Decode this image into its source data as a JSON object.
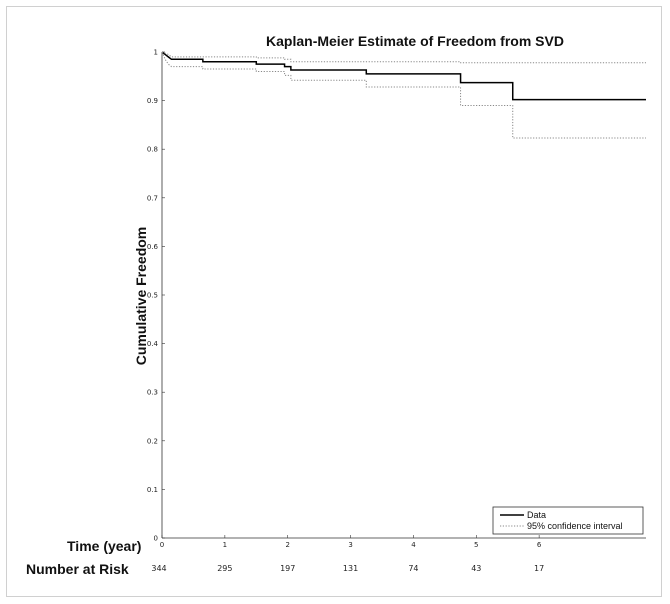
{
  "chart_data": {
    "type": "line",
    "title": "Kaplan-Meier Estimate of Freedom from SVD",
    "xlabel": "Time (year)",
    "ylabel": "Cumulative Freedom",
    "xlim": [
      0,
      7.7
    ],
    "ylim": [
      0,
      1
    ],
    "x_ticks": [
      "0",
      "1",
      "2",
      "3",
      "4",
      "5",
      "6"
    ],
    "y_ticks": [
      "0",
      "0.1",
      "0.2",
      "0.3",
      "0.4",
      "0.5",
      "0.6",
      "0.7",
      "0.8",
      "0.9",
      "1"
    ],
    "risk_table": {
      "label": "Number at Risk",
      "times": [
        0,
        1,
        2,
        3,
        4,
        5,
        6
      ],
      "values": [
        "344",
        "295",
        "197",
        "131",
        "74",
        "43",
        "17"
      ]
    },
    "legend": {
      "position": "bottom-right",
      "entries": [
        "Data",
        "95% confidence interval"
      ]
    },
    "series": [
      {
        "name": "Data",
        "style": "solid",
        "color": "#000000",
        "points": [
          [
            0,
            1.0
          ],
          [
            0.05,
            0.995
          ],
          [
            0.1,
            0.99
          ],
          [
            0.15,
            0.985
          ],
          [
            0.65,
            0.985
          ],
          [
            0.65,
            0.98
          ],
          [
            1.5,
            0.98
          ],
          [
            1.5,
            0.975
          ],
          [
            1.95,
            0.975
          ],
          [
            1.95,
            0.97
          ],
          [
            2.05,
            0.97
          ],
          [
            2.05,
            0.963
          ],
          [
            3.25,
            0.963
          ],
          [
            3.25,
            0.955
          ],
          [
            4.75,
            0.955
          ],
          [
            4.75,
            0.937
          ],
          [
            5.58,
            0.937
          ],
          [
            5.58,
            0.902
          ],
          [
            7.7,
            0.902
          ]
        ]
      },
      {
        "name": "95% confidence interval",
        "style": "dotted",
        "color": "#888888",
        "points": [
          [
            0,
            1.0
          ],
          [
            0.1,
            0.995
          ],
          [
            0.15,
            0.99
          ],
          [
            0.6,
            0.99
          ],
          [
            1.5,
            0.99
          ],
          [
            1.5,
            0.988
          ],
          [
            1.95,
            0.988
          ],
          [
            1.95,
            0.985
          ],
          [
            2.05,
            0.985
          ],
          [
            2.05,
            0.98
          ],
          [
            3.25,
            0.98
          ],
          [
            4.75,
            0.98
          ],
          [
            4.75,
            0.978
          ],
          [
            7.7,
            0.978
          ]
        ]
      },
      {
        "name": "95% confidence interval",
        "style": "dotted",
        "color": "#888888",
        "points": [
          [
            0,
            1.0
          ],
          [
            0.05,
            0.985
          ],
          [
            0.1,
            0.975
          ],
          [
            0.15,
            0.97
          ],
          [
            0.65,
            0.97
          ],
          [
            0.65,
            0.965
          ],
          [
            1.5,
            0.965
          ],
          [
            1.5,
            0.96
          ],
          [
            1.95,
            0.96
          ],
          [
            1.95,
            0.952
          ],
          [
            2.05,
            0.952
          ],
          [
            2.05,
            0.942
          ],
          [
            3.25,
            0.942
          ],
          [
            3.25,
            0.928
          ],
          [
            4.75,
            0.928
          ],
          [
            4.75,
            0.89
          ],
          [
            5.58,
            0.89
          ],
          [
            5.58,
            0.823
          ],
          [
            7.7,
            0.823
          ]
        ]
      }
    ]
  }
}
